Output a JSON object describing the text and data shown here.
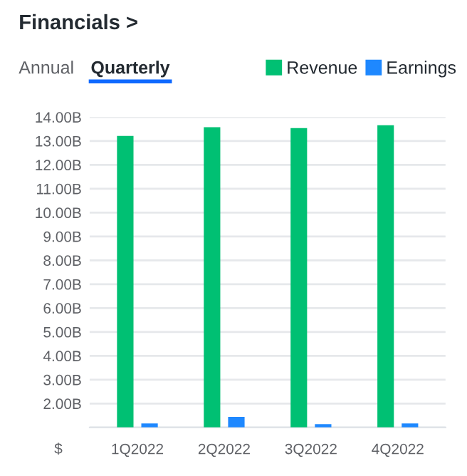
{
  "chart_data": {
    "type": "bar",
    "title": "Financials >",
    "annotations": [
      "Annual",
      "Quarterly"
    ],
    "ylabel": "$",
    "categories": [
      "1Q2022",
      "2Q2022",
      "3Q2022",
      "4Q2022"
    ],
    "series": [
      {
        "name": "Revenue",
        "color": "#00c073",
        "values": [
          13.21,
          13.58,
          13.54,
          13.66
        ]
      },
      {
        "name": "Earnings",
        "color": "#1e88ff",
        "values": [
          1.17,
          1.44,
          1.14,
          1.17
        ]
      }
    ],
    "ylim": [
      1,
      14
    ],
    "yticks": [
      {
        "value": 1,
        "label": null
      },
      {
        "value": 2,
        "label": "2.00B"
      },
      {
        "value": 3,
        "label": "3.00B"
      },
      {
        "value": 4,
        "label": "4.00B"
      },
      {
        "value": 5,
        "label": "5.00B"
      },
      {
        "value": 6,
        "label": "6.00B"
      },
      {
        "value": 7,
        "label": "7.00B"
      },
      {
        "value": 8,
        "label": "8.00B"
      },
      {
        "value": 9,
        "label": "9.00B"
      },
      {
        "value": 10,
        "label": "10.00B"
      },
      {
        "value": 11,
        "label": "11.00B"
      },
      {
        "value": 12,
        "label": "12.00B"
      },
      {
        "value": 13,
        "label": "13.00B"
      },
      {
        "value": 14,
        "label": "14.00B"
      }
    ],
    "grid": "y",
    "legend": "top right"
  }
}
